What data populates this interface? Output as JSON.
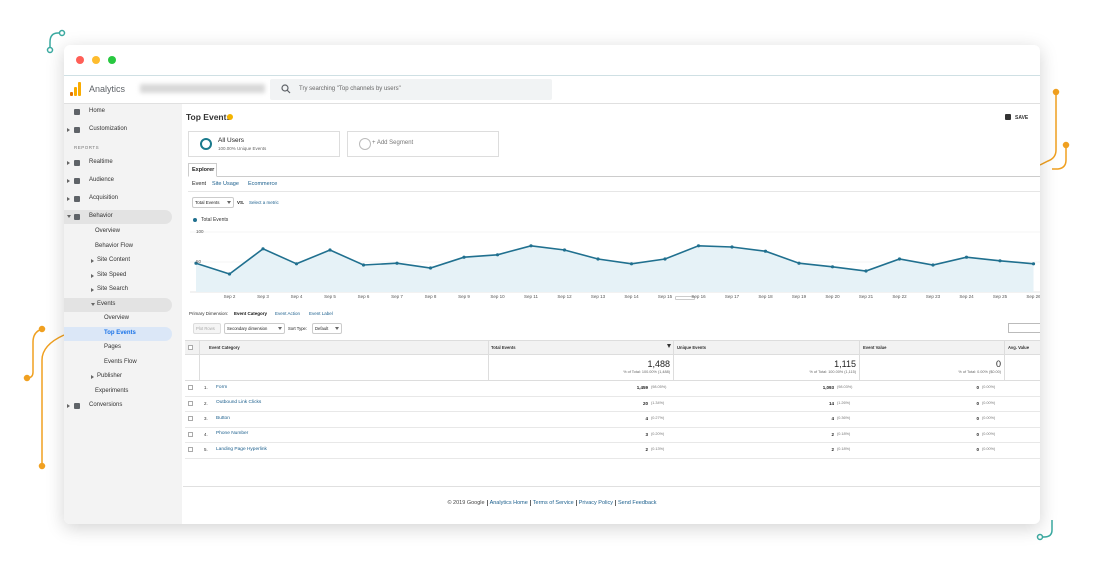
{
  "window": {
    "app_name": "Analytics",
    "search_placeholder": "Try searching \"Top channels by users\""
  },
  "nav": {
    "top": [
      {
        "label": "Home"
      },
      {
        "label": "Customization",
        "expandable": true
      }
    ],
    "section": "REPORTS",
    "reports": [
      {
        "label": "Realtime",
        "expandable": true
      },
      {
        "label": "Audience",
        "expandable": true
      },
      {
        "label": "Acquisition",
        "expandable": true
      },
      {
        "label": "Behavior",
        "children": [
          {
            "label": "Overview"
          },
          {
            "label": "Behavior Flow"
          },
          {
            "label": "Site Content",
            "expandable": true
          },
          {
            "label": "Site Speed",
            "expandable": true
          },
          {
            "label": "Site Search",
            "expandable": true
          },
          {
            "label": "Events",
            "children": [
              {
                "label": "Overview"
              },
              {
                "label": "Top Events",
                "active": true
              },
              {
                "label": "Pages"
              },
              {
                "label": "Events Flow"
              }
            ]
          },
          {
            "label": "Publisher",
            "expandable": true
          },
          {
            "label": "Experiments"
          }
        ]
      },
      {
        "label": "Conversions",
        "expandable": true
      }
    ]
  },
  "report": {
    "title": "Top Events",
    "save": "SAVE",
    "segments": [
      {
        "name": "All Users",
        "detail": "100.00% Unique Events"
      },
      {
        "name": "+ Add Segment"
      }
    ],
    "tab": "Explorer",
    "subtabs": [
      "Event",
      "Site Usage",
      "Ecommerce"
    ],
    "metric": "Total Events",
    "vs": "VS.",
    "select_metric": "Select a metric",
    "primary_dimension": {
      "label": "Primary Dimension:",
      "options": [
        "Event Category",
        "Event Action",
        "Event Label"
      ]
    },
    "controls": {
      "plot_rows": "Plot Rows",
      "secondary": "Secondary dimension",
      "sort_label": "Sort Type:",
      "sort_value": "Default"
    }
  },
  "chart_data": {
    "type": "line",
    "ylim": [
      0,
      100
    ],
    "yticks": [
      100,
      50
    ],
    "grid": true,
    "categories": [
      null,
      "Sep 2",
      "Sep 3",
      "Sep 4",
      "Sep 5",
      "Sep 6",
      "Sep 7",
      "Sep 8",
      "Sep 9",
      "Sep 10",
      "Sep 11",
      "Sep 12",
      "Sep 13",
      "Sep 14",
      "Sep 15",
      "Sep 16",
      "Sep 17",
      "Sep 18",
      "Sep 19",
      "Sep 20",
      "Sep 21",
      "Sep 22",
      "Sep 23",
      "Sep 24",
      "Sep 25",
      "Sep 26"
    ],
    "series": [
      {
        "name": "Total Events",
        "color": "#20708f",
        "values": [
          48,
          30,
          72,
          47,
          70,
          45,
          48,
          40,
          58,
          62,
          77,
          70,
          55,
          47,
          55,
          77,
          75,
          68,
          48,
          42,
          35,
          55,
          45,
          58,
          52,
          47
        ]
      }
    ]
  },
  "table": {
    "columns": [
      "Event Category",
      "Total Events",
      "Unique Events",
      "Event Value",
      "Avg. Value"
    ],
    "totals": [
      {
        "value": "1,488",
        "note": "% of Total: 100.00% (1,488)"
      },
      {
        "value": "1,115",
        "note": "% of Total: 100.00% (1,115)"
      },
      {
        "value": "0",
        "note": "% of Total: 0.00% ($0.00)"
      }
    ],
    "rows": [
      {
        "index": "1.",
        "label": "Form",
        "cells": [
          {
            "value": "1,459",
            "pct": "(98.05%)"
          },
          {
            "value": "1,093",
            "pct": "(98.03%)"
          },
          {
            "value": "0",
            "pct": "(0.00%)"
          }
        ]
      },
      {
        "index": "2.",
        "label": "Outbound Link Clicks",
        "cells": [
          {
            "value": "20",
            "pct": "(1.34%)"
          },
          {
            "value": "14",
            "pct": "(1.26%)"
          },
          {
            "value": "0",
            "pct": "(0.00%)"
          }
        ]
      },
      {
        "index": "3.",
        "label": "Button",
        "cells": [
          {
            "value": "4",
            "pct": "(0.27%)"
          },
          {
            "value": "4",
            "pct": "(0.36%)"
          },
          {
            "value": "0",
            "pct": "(0.00%)"
          }
        ]
      },
      {
        "index": "4.",
        "label": "Phone Number",
        "cells": [
          {
            "value": "3",
            "pct": "(0.20%)"
          },
          {
            "value": "2",
            "pct": "(0.18%)"
          },
          {
            "value": "0",
            "pct": "(0.00%)"
          }
        ]
      },
      {
        "index": "5.",
        "label": "Landing Page Hyperlink",
        "cells": [
          {
            "value": "2",
            "pct": "(0.13%)"
          },
          {
            "value": "2",
            "pct": "(0.18%)"
          },
          {
            "value": "0",
            "pct": "(0.00%)"
          }
        ]
      }
    ]
  },
  "footer": [
    "© 2019 Google",
    "Analytics Home",
    "Terms of Service",
    "Privacy Policy",
    "Send Feedback"
  ]
}
